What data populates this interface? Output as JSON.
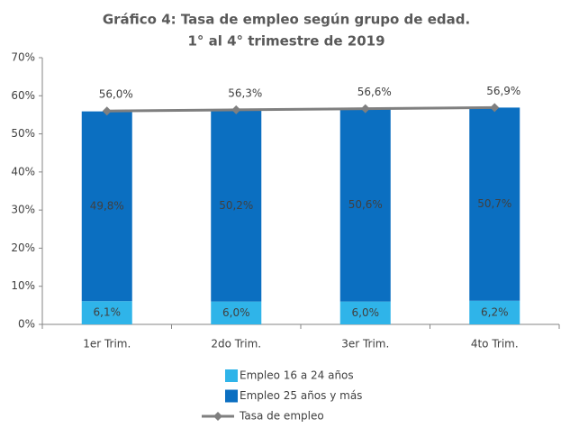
{
  "chart_data": {
    "type": "bar",
    "stacked": true,
    "title": "Gráfico 4: Tasa de empleo según grupo de edad.",
    "subtitle": "1° al 4° trimestre de 2019",
    "categories": [
      "1er Trim.",
      "2do Trim.",
      "3er Trim.",
      "4to Trim."
    ],
    "series": [
      {
        "name": "Empleo 16 a 24 años",
        "color": "#2fb4e9",
        "values": [
          6.1,
          6.0,
          6.0,
          6.2
        ],
        "value_labels": [
          "6,1%",
          "6,0%",
          "6,0%",
          "6,2%"
        ]
      },
      {
        "name": "Empleo 25 años y más",
        "color": "#0b6fc1",
        "values": [
          49.8,
          50.2,
          50.6,
          50.7
        ],
        "value_labels": [
          "49,8%",
          "50,2%",
          "50,6%",
          "50,7%"
        ]
      },
      {
        "name": "Tasa de empleo",
        "type": "line",
        "color": "#7f7f7f",
        "values": [
          56.0,
          56.3,
          56.6,
          56.9
        ],
        "value_labels": [
          "56,0%",
          "56,3%",
          "56,6%",
          "56,9%"
        ]
      }
    ],
    "ylim": [
      0,
      70
    ],
    "yticks": [
      {
        "value": 0,
        "label": "0%"
      },
      {
        "value": 10,
        "label": "10%"
      },
      {
        "value": 20,
        "label": "20%"
      },
      {
        "value": 30,
        "label": "30%"
      },
      {
        "value": 40,
        "label": "40%"
      },
      {
        "value": 50,
        "label": "50%"
      },
      {
        "value": 60,
        "label": "60%"
      },
      {
        "value": 70,
        "label": "70%"
      }
    ],
    "grid": false,
    "legend": "bottom"
  }
}
